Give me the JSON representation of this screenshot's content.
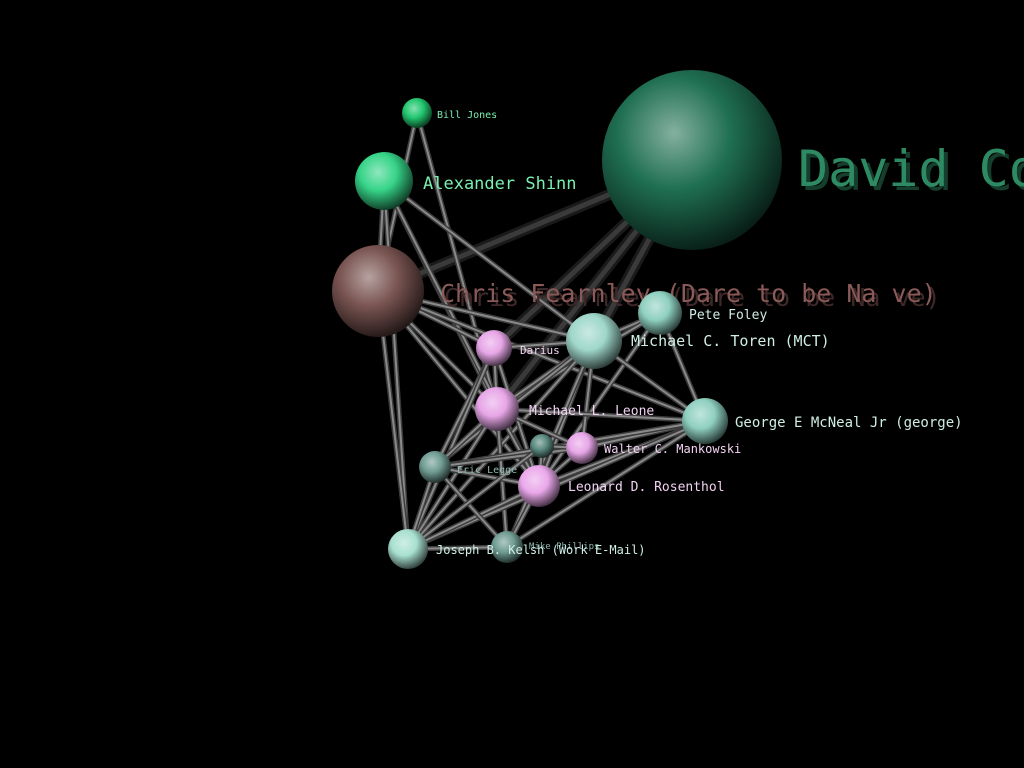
{
  "nodes": [
    {
      "id": "david",
      "label": "David Co",
      "color": "#1f6f52",
      "label_color": "#2e8a63"
    },
    {
      "id": "bill",
      "label": "Bill Jones",
      "color": "#22c66f",
      "label_color": "#7af0b0"
    },
    {
      "id": "alexander",
      "label": "Alexander Shinn",
      "color": "#36d488",
      "label_color": "#7af0b0"
    },
    {
      "id": "chris",
      "label": "Chris Fearnley (Dare to be Na ve)",
      "color": "#7a5552",
      "label_color": "#8a5a58"
    },
    {
      "id": "pete",
      "label": "Pete Foley",
      "color": "#8fd0c0",
      "label_color": "#cfeee6"
    },
    {
      "id": "michael_t",
      "label": "Michael C. Toren (MCT)",
      "color": "#9fd7ca",
      "label_color": "#cfeee6"
    },
    {
      "id": "darius",
      "label": "Darius",
      "color": "#e7a6e7",
      "label_color": "#f2d2f2"
    },
    {
      "id": "michael_l",
      "label": "Michael L. Leone",
      "color": "#e7a6e7",
      "label_color": "#f2d2f2"
    },
    {
      "id": "george",
      "label": "George E McNeal Jr (george)",
      "color": "#8fd0c0",
      "label_color": "#cfeee6"
    },
    {
      "id": "walter",
      "label": "Walter C. Mankowski",
      "color": "#e7a6e7",
      "label_color": "#f2d2f2"
    },
    {
      "id": "leonard",
      "label": "Leonard D. Rosenthol",
      "color": "#eaa8ea",
      "label_color": "#f2d2f2"
    },
    {
      "id": "eric",
      "label": "Eric Legge",
      "color": "#6f9c92",
      "label_color": "#8fb8b0"
    },
    {
      "id": "mike",
      "label": "Mike Phillips",
      "color": "#6f9c92",
      "label_color": "#8fb8b0"
    },
    {
      "id": "joseph",
      "label": "Joseph B. Kelsh (Work E-Mail)",
      "color": "#a8e0d0",
      "label_color": "#cfeee6"
    },
    {
      "id": "hidden",
      "label": "",
      "color": "#5b8a80",
      "label_color": "#8fb8b0"
    }
  ],
  "edges": [
    [
      "david",
      "chris"
    ],
    [
      "david",
      "michael_t"
    ],
    [
      "david",
      "darius"
    ],
    [
      "david",
      "michael_l"
    ],
    [
      "bill",
      "chris"
    ],
    [
      "bill",
      "michael_l"
    ],
    [
      "alexander",
      "chris"
    ],
    [
      "alexander",
      "michael_t"
    ],
    [
      "alexander",
      "michael_l"
    ],
    [
      "alexander",
      "leonard"
    ],
    [
      "alexander",
      "joseph"
    ],
    [
      "chris",
      "michael_t"
    ],
    [
      "chris",
      "darius"
    ],
    [
      "chris",
      "michael_l"
    ],
    [
      "chris",
      "leonard"
    ],
    [
      "chris",
      "joseph"
    ],
    [
      "chris",
      "george"
    ],
    [
      "pete",
      "michael_t"
    ],
    [
      "pete",
      "george"
    ],
    [
      "pete",
      "michael_l"
    ],
    [
      "pete",
      "leonard"
    ],
    [
      "michael_t",
      "darius"
    ],
    [
      "michael_t",
      "michael_l"
    ],
    [
      "michael_t",
      "george"
    ],
    [
      "michael_t",
      "walter"
    ],
    [
      "michael_t",
      "leonard"
    ],
    [
      "michael_t",
      "eric"
    ],
    [
      "michael_t",
      "joseph"
    ],
    [
      "michael_t",
      "mike"
    ],
    [
      "darius",
      "michael_l"
    ],
    [
      "darius",
      "leonard"
    ],
    [
      "darius",
      "eric"
    ],
    [
      "darius",
      "joseph"
    ],
    [
      "michael_l",
      "george"
    ],
    [
      "michael_l",
      "walter"
    ],
    [
      "michael_l",
      "leonard"
    ],
    [
      "michael_l",
      "eric"
    ],
    [
      "michael_l",
      "joseph"
    ],
    [
      "michael_l",
      "mike"
    ],
    [
      "george",
      "walter"
    ],
    [
      "george",
      "leonard"
    ],
    [
      "george",
      "eric"
    ],
    [
      "george",
      "mike"
    ],
    [
      "george",
      "joseph"
    ],
    [
      "walter",
      "leonard"
    ],
    [
      "walter",
      "eric"
    ],
    [
      "walter",
      "hidden"
    ],
    [
      "leonard",
      "eric"
    ],
    [
      "leonard",
      "joseph"
    ],
    [
      "leonard",
      "mike"
    ],
    [
      "leonard",
      "hidden"
    ],
    [
      "eric",
      "joseph"
    ],
    [
      "eric",
      "mike"
    ],
    [
      "joseph",
      "mike"
    ],
    [
      "hidden",
      "joseph"
    ]
  ]
}
